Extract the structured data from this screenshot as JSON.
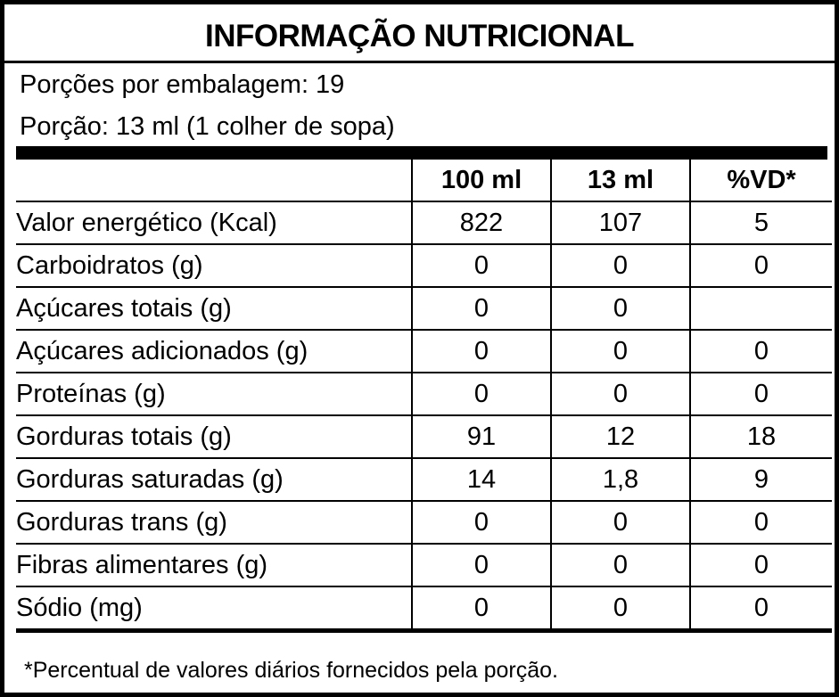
{
  "title": "INFORMAÇÃO NUTRICIONAL",
  "servings_per_package": "Porções por embalagem: 19",
  "serving_size": "Porção: 13 ml (1 colher de sopa)",
  "table": {
    "headers": [
      "",
      "100 ml",
      "13 ml",
      "%VD*"
    ],
    "rows": [
      {
        "name": "Valor energético (Kcal)",
        "indent": 0,
        "per100": "822",
        "perServing": "107",
        "dv": "5"
      },
      {
        "name": "Carboidratos (g)",
        "indent": 0,
        "per100": "0",
        "perServing": "0",
        "dv": "0"
      },
      {
        "name": "Açúcares totais (g)",
        "indent": 1,
        "per100": "0",
        "perServing": "0",
        "dv": ""
      },
      {
        "name": "Açúcares adicionados (g)",
        "indent": 2,
        "per100": "0",
        "perServing": "0",
        "dv": "0"
      },
      {
        "name": "Proteínas (g)",
        "indent": 0,
        "per100": "0",
        "perServing": "0",
        "dv": "0"
      },
      {
        "name": "Gorduras totais (g)",
        "indent": 0,
        "per100": "91",
        "perServing": "12",
        "dv": "18"
      },
      {
        "name": "Gorduras saturadas (g)",
        "indent": 1,
        "per100": "14",
        "perServing": "1,8",
        "dv": "9"
      },
      {
        "name": "Gorduras trans (g)",
        "indent": 1,
        "per100": "0",
        "perServing": "0",
        "dv": "0"
      },
      {
        "name": "Fibras alimentares (g)",
        "indent": 0,
        "per100": "0",
        "perServing": "0",
        "dv": "0"
      },
      {
        "name": "Sódio (mg)",
        "indent": 0,
        "per100": "0",
        "perServing": "0",
        "dv": "0"
      }
    ]
  },
  "footnote": "*Percentual de valores diários fornecidos pela porção."
}
